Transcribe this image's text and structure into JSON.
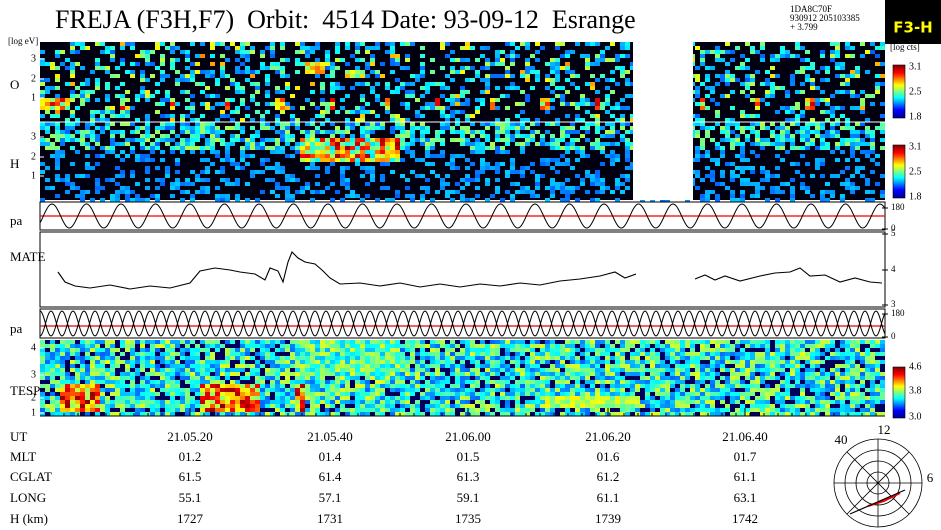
{
  "header": {
    "title": "FREJA (F3H,F7)  Orbit:  4514 Date: 93-09-12  Esrange",
    "id_lines": [
      "1DA8C70F",
      "930912 205103385",
      "+ 3.799"
    ],
    "logo": "F3-H"
  },
  "panels": [
    {
      "label": "O",
      "unit": "[log eV]",
      "ticks": [
        3,
        2,
        1
      ]
    },
    {
      "label": "H",
      "ticks": [
        3,
        2,
        1
      ]
    },
    {
      "label": "pa",
      "right_ticks": [
        180,
        0
      ]
    },
    {
      "label": "MATE",
      "right_ticks": [
        5,
        4,
        3
      ]
    },
    {
      "label": "pa",
      "right_ticks": [
        180,
        0
      ]
    },
    {
      "label": "TESP",
      "ticks": [
        4,
        3,
        2,
        1
      ]
    }
  ],
  "colorbars": {
    "unit": "[log cts]",
    "bars": [
      [
        "3.1",
        "2.5",
        "1.8"
      ],
      [
        "3.1",
        "2.5",
        "1.8"
      ],
      [
        "4.6",
        "3.8",
        "3.0"
      ]
    ]
  },
  "table": {
    "rows": [
      [
        "UT",
        "21.05.20",
        "21.05.40",
        "21.06.00",
        "21.06.20",
        "21.06.40"
      ],
      [
        "MLT",
        "01.2",
        "01.4",
        "01.5",
        "01.6",
        "01.7"
      ],
      [
        "CGLAT",
        "61.5",
        "61.4",
        "61.3",
        "61.2",
        "61.1"
      ],
      [
        "LONG",
        "55.1",
        "57.1",
        "59.1",
        "61.1",
        "63.1"
      ],
      [
        "H (km)",
        "1727",
        "1731",
        "1735",
        "1739",
        "1742"
      ]
    ]
  },
  "dial": {
    "top": "12",
    "left": "40",
    "right": "6"
  }
}
